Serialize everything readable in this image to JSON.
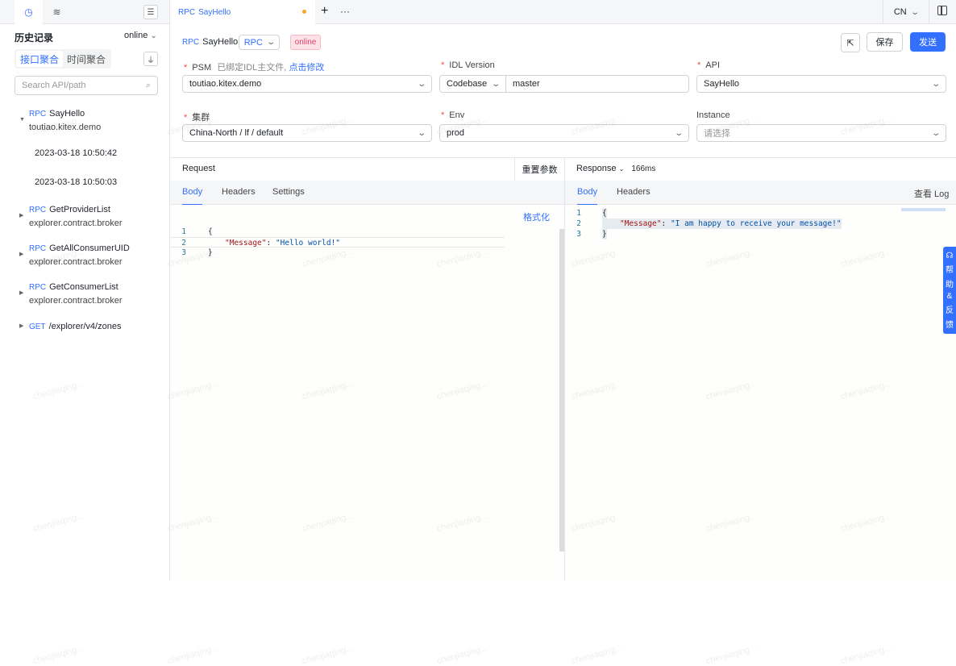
{
  "sidebar": {
    "title": "历史记录",
    "env": "online",
    "seg": [
      "接口聚合",
      "时间聚合"
    ],
    "search_placeholder": "Search API/path",
    "items": [
      {
        "method": "RPC",
        "name": "SayHello",
        "psm": "toutiao.kitex.demo",
        "expanded": true,
        "history": [
          "2023-03-18 10:50:42",
          "2023-03-18 10:50:03"
        ]
      },
      {
        "method": "RPC",
        "name": "GetProviderList",
        "psm": "explorer.contract.broker"
      },
      {
        "method": "RPC",
        "name": "GetAllConsumerUID",
        "psm": "explorer.contract.broker"
      },
      {
        "method": "RPC",
        "name": "GetConsumerList",
        "psm": "explorer.contract.broker"
      },
      {
        "method": "GET",
        "name": "/explorer/v4/zones"
      }
    ]
  },
  "tabbar": {
    "tab": {
      "method": "RPC",
      "name": "SayHello"
    },
    "lang": "CN"
  },
  "header": {
    "method": "RPC",
    "name": "SayHello",
    "type": "RPC",
    "env_badge": "online",
    "save": "保存",
    "send": "发送"
  },
  "form": {
    "psm": {
      "label": "PSM",
      "hint": "已绑定IDL主文件,",
      "link": "点击修改",
      "value": "toutiao.kitex.demo"
    },
    "idl": {
      "label": "IDL Version",
      "source": "Codebase",
      "branch": "master"
    },
    "api": {
      "label": "API",
      "value": "SayHello"
    },
    "cluster": {
      "label": "集群",
      "value": "China-North / lf / default"
    },
    "env": {
      "label": "Env",
      "value": "prod"
    },
    "instance": {
      "label": "Instance",
      "placeholder": "请选择"
    }
  },
  "request": {
    "title": "Request",
    "reset": "重置参数",
    "tabs": [
      "Body",
      "Headers",
      "Settings"
    ],
    "format": "格式化",
    "lines": [
      "{",
      "\"Message\"",
      ": ",
      "\"Hello world!\"",
      "}"
    ]
  },
  "response": {
    "title": "Response",
    "time": "166ms",
    "tabs": [
      "Body",
      "Headers"
    ],
    "log": "查看 Log",
    "lines": [
      "{",
      "\"Message\"",
      ": ",
      "\"I am happy to receive your message!\"",
      "}"
    ]
  },
  "help": [
    "帮",
    "助",
    "&",
    "反",
    "馈"
  ],
  "watermark": "chenjiaqing..."
}
